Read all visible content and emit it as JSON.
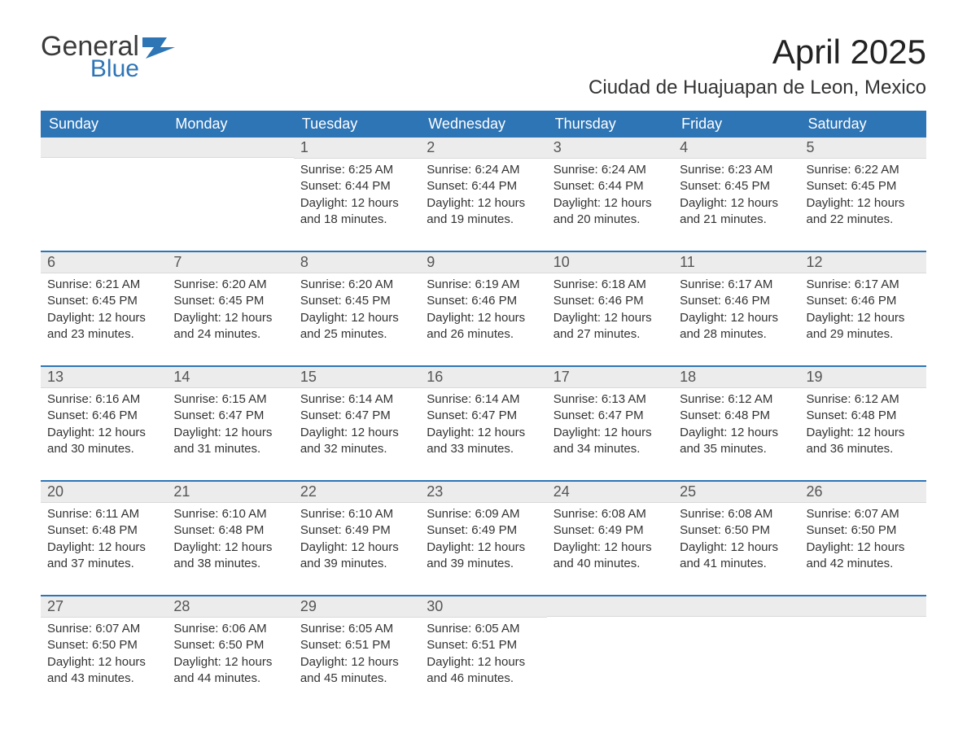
{
  "brand": {
    "name1": "General",
    "name2": "Blue",
    "flag_color": "#2e75b6"
  },
  "header": {
    "month_title": "April 2025",
    "location": "Ciudad de Huajuapan de Leon, Mexico"
  },
  "colors": {
    "header_bg": "#2e75b6",
    "header_text": "#ffffff",
    "week_divider": "#2e75b6",
    "daynum_bg": "#ececec",
    "daynum_text": "#555555",
    "body_text": "#333333",
    "background": "#ffffff"
  },
  "typography": {
    "title_fontsize_pt": 32,
    "location_fontsize_pt": 18,
    "header_cell_fontsize_pt": 14,
    "daynum_fontsize_pt": 14,
    "body_fontsize_pt": 11,
    "font_family": "Segoe UI"
  },
  "weekdays": [
    "Sunday",
    "Monday",
    "Tuesday",
    "Wednesday",
    "Thursday",
    "Friday",
    "Saturday"
  ],
  "weeks": [
    [
      {
        "day": "",
        "sunrise": "",
        "sunset": "",
        "daylight1": "",
        "daylight2": "",
        "empty": true
      },
      {
        "day": "",
        "sunrise": "",
        "sunset": "",
        "daylight1": "",
        "daylight2": "",
        "empty": true
      },
      {
        "day": "1",
        "sunrise": "Sunrise: 6:25 AM",
        "sunset": "Sunset: 6:44 PM",
        "daylight1": "Daylight: 12 hours",
        "daylight2": "and 18 minutes."
      },
      {
        "day": "2",
        "sunrise": "Sunrise: 6:24 AM",
        "sunset": "Sunset: 6:44 PM",
        "daylight1": "Daylight: 12 hours",
        "daylight2": "and 19 minutes."
      },
      {
        "day": "3",
        "sunrise": "Sunrise: 6:24 AM",
        "sunset": "Sunset: 6:44 PM",
        "daylight1": "Daylight: 12 hours",
        "daylight2": "and 20 minutes."
      },
      {
        "day": "4",
        "sunrise": "Sunrise: 6:23 AM",
        "sunset": "Sunset: 6:45 PM",
        "daylight1": "Daylight: 12 hours",
        "daylight2": "and 21 minutes."
      },
      {
        "day": "5",
        "sunrise": "Sunrise: 6:22 AM",
        "sunset": "Sunset: 6:45 PM",
        "daylight1": "Daylight: 12 hours",
        "daylight2": "and 22 minutes."
      }
    ],
    [
      {
        "day": "6",
        "sunrise": "Sunrise: 6:21 AM",
        "sunset": "Sunset: 6:45 PM",
        "daylight1": "Daylight: 12 hours",
        "daylight2": "and 23 minutes."
      },
      {
        "day": "7",
        "sunrise": "Sunrise: 6:20 AM",
        "sunset": "Sunset: 6:45 PM",
        "daylight1": "Daylight: 12 hours",
        "daylight2": "and 24 minutes."
      },
      {
        "day": "8",
        "sunrise": "Sunrise: 6:20 AM",
        "sunset": "Sunset: 6:45 PM",
        "daylight1": "Daylight: 12 hours",
        "daylight2": "and 25 minutes."
      },
      {
        "day": "9",
        "sunrise": "Sunrise: 6:19 AM",
        "sunset": "Sunset: 6:46 PM",
        "daylight1": "Daylight: 12 hours",
        "daylight2": "and 26 minutes."
      },
      {
        "day": "10",
        "sunrise": "Sunrise: 6:18 AM",
        "sunset": "Sunset: 6:46 PM",
        "daylight1": "Daylight: 12 hours",
        "daylight2": "and 27 minutes."
      },
      {
        "day": "11",
        "sunrise": "Sunrise: 6:17 AM",
        "sunset": "Sunset: 6:46 PM",
        "daylight1": "Daylight: 12 hours",
        "daylight2": "and 28 minutes."
      },
      {
        "day": "12",
        "sunrise": "Sunrise: 6:17 AM",
        "sunset": "Sunset: 6:46 PM",
        "daylight1": "Daylight: 12 hours",
        "daylight2": "and 29 minutes."
      }
    ],
    [
      {
        "day": "13",
        "sunrise": "Sunrise: 6:16 AM",
        "sunset": "Sunset: 6:46 PM",
        "daylight1": "Daylight: 12 hours",
        "daylight2": "and 30 minutes."
      },
      {
        "day": "14",
        "sunrise": "Sunrise: 6:15 AM",
        "sunset": "Sunset: 6:47 PM",
        "daylight1": "Daylight: 12 hours",
        "daylight2": "and 31 minutes."
      },
      {
        "day": "15",
        "sunrise": "Sunrise: 6:14 AM",
        "sunset": "Sunset: 6:47 PM",
        "daylight1": "Daylight: 12 hours",
        "daylight2": "and 32 minutes."
      },
      {
        "day": "16",
        "sunrise": "Sunrise: 6:14 AM",
        "sunset": "Sunset: 6:47 PM",
        "daylight1": "Daylight: 12 hours",
        "daylight2": "and 33 minutes."
      },
      {
        "day": "17",
        "sunrise": "Sunrise: 6:13 AM",
        "sunset": "Sunset: 6:47 PM",
        "daylight1": "Daylight: 12 hours",
        "daylight2": "and 34 minutes."
      },
      {
        "day": "18",
        "sunrise": "Sunrise: 6:12 AM",
        "sunset": "Sunset: 6:48 PM",
        "daylight1": "Daylight: 12 hours",
        "daylight2": "and 35 minutes."
      },
      {
        "day": "19",
        "sunrise": "Sunrise: 6:12 AM",
        "sunset": "Sunset: 6:48 PM",
        "daylight1": "Daylight: 12 hours",
        "daylight2": "and 36 minutes."
      }
    ],
    [
      {
        "day": "20",
        "sunrise": "Sunrise: 6:11 AM",
        "sunset": "Sunset: 6:48 PM",
        "daylight1": "Daylight: 12 hours",
        "daylight2": "and 37 minutes."
      },
      {
        "day": "21",
        "sunrise": "Sunrise: 6:10 AM",
        "sunset": "Sunset: 6:48 PM",
        "daylight1": "Daylight: 12 hours",
        "daylight2": "and 38 minutes."
      },
      {
        "day": "22",
        "sunrise": "Sunrise: 6:10 AM",
        "sunset": "Sunset: 6:49 PM",
        "daylight1": "Daylight: 12 hours",
        "daylight2": "and 39 minutes."
      },
      {
        "day": "23",
        "sunrise": "Sunrise: 6:09 AM",
        "sunset": "Sunset: 6:49 PM",
        "daylight1": "Daylight: 12 hours",
        "daylight2": "and 39 minutes."
      },
      {
        "day": "24",
        "sunrise": "Sunrise: 6:08 AM",
        "sunset": "Sunset: 6:49 PM",
        "daylight1": "Daylight: 12 hours",
        "daylight2": "and 40 minutes."
      },
      {
        "day": "25",
        "sunrise": "Sunrise: 6:08 AM",
        "sunset": "Sunset: 6:50 PM",
        "daylight1": "Daylight: 12 hours",
        "daylight2": "and 41 minutes."
      },
      {
        "day": "26",
        "sunrise": "Sunrise: 6:07 AM",
        "sunset": "Sunset: 6:50 PM",
        "daylight1": "Daylight: 12 hours",
        "daylight2": "and 42 minutes."
      }
    ],
    [
      {
        "day": "27",
        "sunrise": "Sunrise: 6:07 AM",
        "sunset": "Sunset: 6:50 PM",
        "daylight1": "Daylight: 12 hours",
        "daylight2": "and 43 minutes."
      },
      {
        "day": "28",
        "sunrise": "Sunrise: 6:06 AM",
        "sunset": "Sunset: 6:50 PM",
        "daylight1": "Daylight: 12 hours",
        "daylight2": "and 44 minutes."
      },
      {
        "day": "29",
        "sunrise": "Sunrise: 6:05 AM",
        "sunset": "Sunset: 6:51 PM",
        "daylight1": "Daylight: 12 hours",
        "daylight2": "and 45 minutes."
      },
      {
        "day": "30",
        "sunrise": "Sunrise: 6:05 AM",
        "sunset": "Sunset: 6:51 PM",
        "daylight1": "Daylight: 12 hours",
        "daylight2": "and 46 minutes."
      },
      {
        "day": "",
        "sunrise": "",
        "sunset": "",
        "daylight1": "",
        "daylight2": "",
        "empty": true
      },
      {
        "day": "",
        "sunrise": "",
        "sunset": "",
        "daylight1": "",
        "daylight2": "",
        "empty": true
      },
      {
        "day": "",
        "sunrise": "",
        "sunset": "",
        "daylight1": "",
        "daylight2": "",
        "empty": true
      }
    ]
  ]
}
